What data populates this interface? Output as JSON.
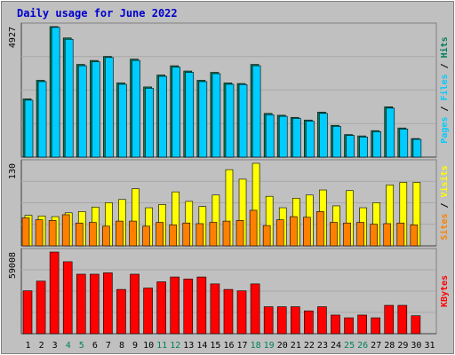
{
  "title": "Daily usage for June 2022",
  "colors": {
    "background": "#c0c0c0",
    "plot_bg": "#c0c0c0",
    "title": "#0000cc",
    "hits": "#00805c",
    "files": "#00ccff",
    "pages": "#00ccff",
    "visits": "#ffff00",
    "sites": "#ff8000",
    "kbytes": "#ff0000",
    "axis_day": "#000000",
    "axis_weekend": "#00805c"
  },
  "chart_data": [
    {
      "type": "bar",
      "panel": "hits-files",
      "ymax_label": "4927",
      "right_label": {
        "pages": "Pages",
        "files": "Files",
        "hits": "Hits",
        "sep": " / "
      },
      "categories": [
        "1",
        "2",
        "3",
        "4",
        "5",
        "6",
        "7",
        "8",
        "9",
        "10",
        "11",
        "12",
        "13",
        "14",
        "15",
        "16",
        "17",
        "18",
        "19",
        "20",
        "21",
        "22",
        "23",
        "24",
        "25",
        "26",
        "27",
        "28",
        "29",
        "30",
        "31"
      ],
      "series": [
        {
          "name": "Hits",
          "values": [
            2200,
            2900,
            4927,
            4500,
            3500,
            3650,
            3800,
            2800,
            3700,
            2650,
            3100,
            3450,
            3250,
            2900,
            3200,
            2800,
            2780,
            3500,
            1650,
            1580,
            1500,
            1400,
            1700,
            1200,
            850,
            800,
            1000,
            1900,
            1100,
            700,
            null
          ]
        },
        {
          "name": "Files",
          "values": [
            2150,
            2850,
            4900,
            4450,
            3450,
            3600,
            3760,
            2750,
            3650,
            2600,
            3050,
            3400,
            3200,
            2850,
            3150,
            2750,
            2740,
            3450,
            1600,
            1540,
            1460,
            1360,
            1650,
            1160,
            820,
            760,
            960,
            1850,
            1060,
            670,
            null
          ]
        }
      ],
      "ylim": [
        0,
        4927
      ]
    },
    {
      "type": "bar",
      "panel": "visits-sites",
      "ymax_label": "130",
      "right_label": {
        "sites": "Sites",
        "visits": "Visits",
        "sep": " / "
      },
      "categories": [
        "1",
        "2",
        "3",
        "4",
        "5",
        "6",
        "7",
        "8",
        "9",
        "10",
        "11",
        "12",
        "13",
        "14",
        "15",
        "16",
        "17",
        "18",
        "19",
        "20",
        "21",
        "22",
        "23",
        "24",
        "25",
        "26",
        "27",
        "28",
        "29",
        "30",
        "31"
      ],
      "series": [
        {
          "name": "Visits",
          "values": [
            48,
            47,
            46,
            52,
            54,
            61,
            68,
            73,
            90,
            60,
            65,
            85,
            70,
            62,
            80,
            120,
            105,
            130,
            78,
            60,
            75,
            80,
            88,
            63,
            87,
            60,
            68,
            96,
            100,
            100,
            null
          ]
        },
        {
          "name": "Sites",
          "values": [
            44,
            41,
            40,
            49,
            36,
            37,
            31,
            39,
            39,
            31,
            37,
            33,
            36,
            35,
            37,
            39,
            40,
            56,
            32,
            41,
            46,
            45,
            54,
            37,
            36,
            37,
            34,
            35,
            36,
            33,
            null
          ]
        }
      ],
      "ylim": [
        0,
        130
      ]
    },
    {
      "type": "bar",
      "panel": "kbytes",
      "ymax_label": "59008",
      "right_label": {
        "kbytes": "KBytes"
      },
      "categories": [
        "1",
        "2",
        "3",
        "4",
        "5",
        "6",
        "7",
        "8",
        "9",
        "10",
        "11",
        "12",
        "13",
        "14",
        "15",
        "16",
        "17",
        "18",
        "19",
        "20",
        "21",
        "22",
        "23",
        "24",
        "25",
        "26",
        "27",
        "28",
        "29",
        "30",
        "31"
      ],
      "series": [
        {
          "name": "KBytes",
          "values": [
            31000,
            38000,
            59008,
            52000,
            43000,
            43000,
            44000,
            32000,
            43000,
            33000,
            37500,
            41000,
            39500,
            41000,
            36000,
            32000,
            31000,
            36000,
            19500,
            19500,
            19500,
            16500,
            19500,
            13500,
            11500,
            13500,
            11500,
            20500,
            20500,
            13000,
            null
          ]
        }
      ],
      "ylim": [
        0,
        59008
      ]
    }
  ]
}
